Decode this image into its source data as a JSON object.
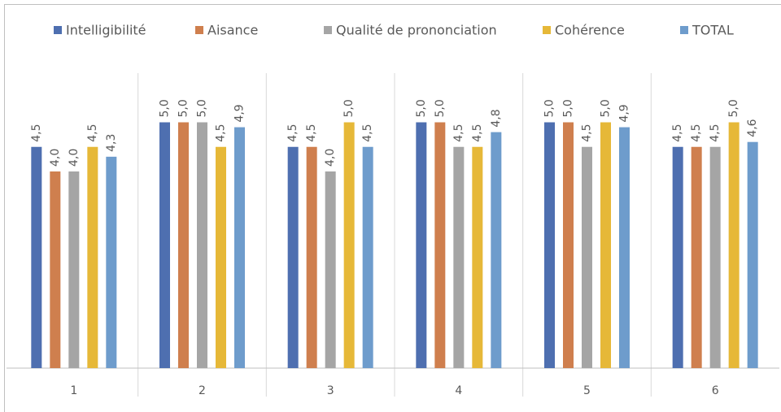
{
  "chart_data": {
    "type": "bar",
    "categories": [
      "1",
      "2",
      "3",
      "4",
      "5",
      "6"
    ],
    "series": [
      {
        "name": "Intelligibilité",
        "color": "#4e6fb0",
        "values": [
          4.5,
          5.0,
          4.5,
          5.0,
          5.0,
          4.5
        ],
        "value_labels": [
          "4,5",
          "5,0",
          "4,5",
          "5,0",
          "5,0",
          "4,5"
        ]
      },
      {
        "name": "Aisance",
        "color": "#cf7f4e",
        "values": [
          4.0,
          5.0,
          4.5,
          5.0,
          5.0,
          4.5
        ],
        "value_labels": [
          "4,0",
          "5,0",
          "4,5",
          "5,0",
          "5,0",
          "4,5"
        ]
      },
      {
        "name": "Qualité de prononciation",
        "color": "#a5a5a5",
        "values": [
          4.0,
          5.0,
          4.0,
          4.5,
          4.5,
          4.5
        ],
        "value_labels": [
          "4,0",
          "5,0",
          "4,0",
          "4,5",
          "4,5",
          "4,5"
        ]
      },
      {
        "name": "Cohérence",
        "color": "#e6b838",
        "values": [
          4.5,
          4.5,
          5.0,
          4.5,
          5.0,
          5.0
        ],
        "value_labels": [
          "4,5",
          "4,5",
          "5,0",
          "4,5",
          "5,0",
          "5,0"
        ]
      },
      {
        "name": "TOTAL",
        "color": "#6e9ccc",
        "values": [
          4.3,
          4.9,
          4.5,
          4.8,
          4.9,
          4.6
        ],
        "value_labels": [
          "4,3",
          "4,9",
          "4,5",
          "4,8",
          "4,9",
          "4,6"
        ]
      }
    ],
    "ylim": [
      0,
      6
    ],
    "legend": "top"
  }
}
